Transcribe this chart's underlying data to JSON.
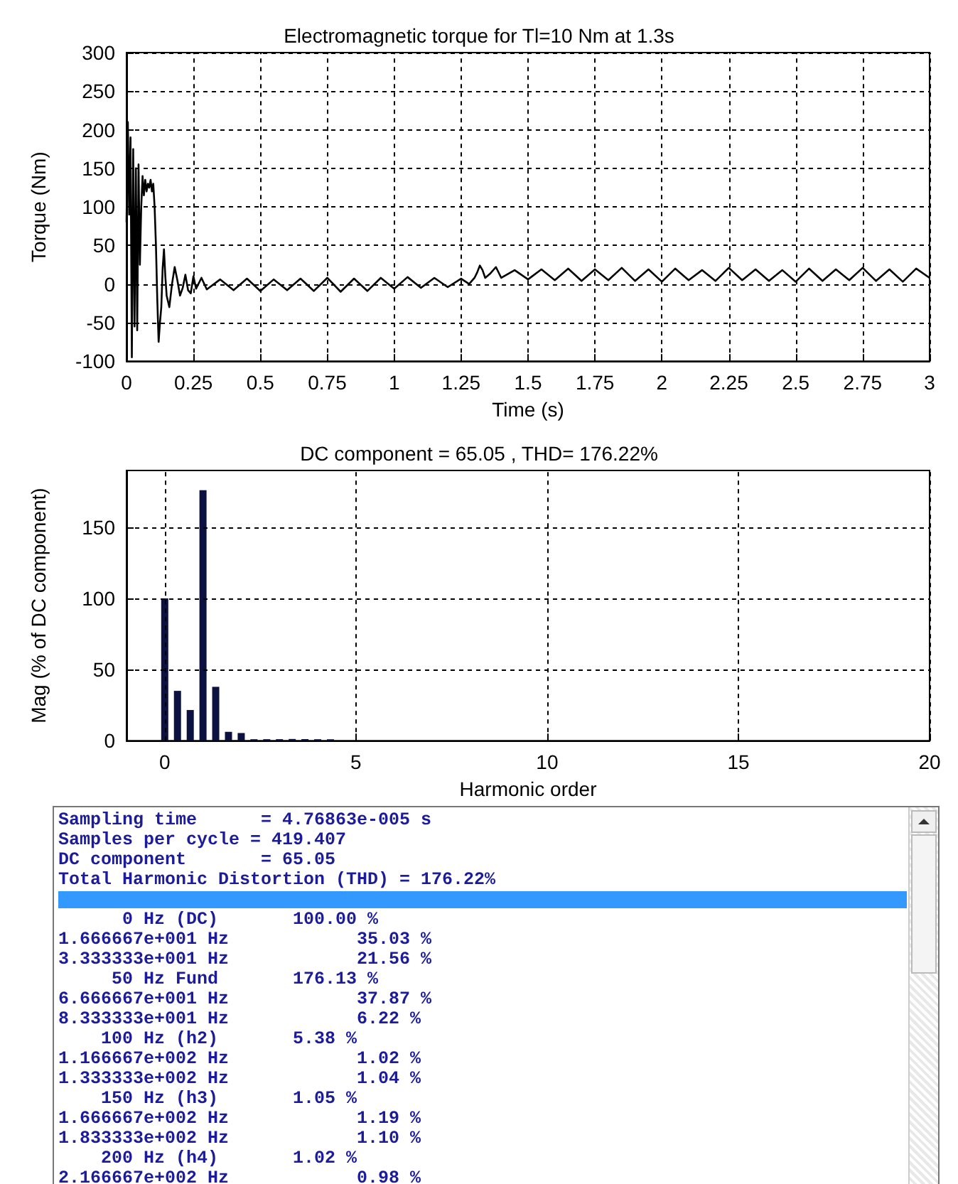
{
  "chart_data": [
    {
      "type": "line",
      "title": "Electromagnetic torque for Tl=10 Nm at 1.3s",
      "xlabel": "Time (s)",
      "ylabel": "Torque (Nm)",
      "xlim": [
        0,
        3
      ],
      "xticks": [
        0,
        0.25,
        0.5,
        0.75,
        1,
        1.25,
        1.5,
        1.75,
        2,
        2.25,
        2.5,
        2.75,
        3
      ],
      "ylim": [
        -100,
        300
      ],
      "yticks": [
        -100,
        -50,
        0,
        50,
        100,
        150,
        200,
        250,
        300
      ],
      "grid": true,
      "series": [
        {
          "color": "#000000",
          "x": [
            0,
            0.005,
            0.01,
            0.015,
            0.02,
            0.025,
            0.03,
            0.035,
            0.04,
            0.045,
            0.05,
            0.055,
            0.06,
            0.065,
            0.07,
            0.075,
            0.08,
            0.085,
            0.09,
            0.095,
            0.1,
            0.105,
            0.11,
            0.115,
            0.12,
            0.125,
            0.13,
            0.135,
            0.14,
            0.145,
            0.15,
            0.16,
            0.17,
            0.18,
            0.19,
            0.2,
            0.21,
            0.22,
            0.23,
            0.24,
            0.25,
            0.26,
            0.28,
            0.3,
            0.35,
            0.4,
            0.45,
            0.5,
            0.55,
            0.6,
            0.65,
            0.7,
            0.75,
            0.8,
            0.85,
            0.9,
            0.95,
            1.0,
            1.05,
            1.1,
            1.15,
            1.2,
            1.25,
            1.28,
            1.3,
            1.31,
            1.32,
            1.33,
            1.34,
            1.36,
            1.38,
            1.4,
            1.45,
            1.5,
            1.55,
            1.6,
            1.65,
            1.7,
            1.75,
            1.8,
            1.85,
            1.9,
            1.95,
            2.0,
            2.05,
            2.1,
            2.15,
            2.2,
            2.25,
            2.3,
            2.35,
            2.4,
            2.45,
            2.5,
            2.55,
            2.6,
            2.65,
            2.7,
            2.75,
            2.8,
            2.85,
            2.9,
            2.95,
            3.0
          ],
          "values": [
            80,
            210,
            90,
            190,
            -95,
            175,
            -55,
            150,
            -60,
            155,
            25,
            100,
            140,
            115,
            135,
            120,
            130,
            125,
            135,
            120,
            130,
            100,
            50,
            -20,
            -75,
            -50,
            -30,
            20,
            45,
            10,
            -15,
            -30,
            0,
            22,
            5,
            -15,
            -5,
            12,
            -8,
            -12,
            10,
            -6,
            8,
            -7,
            6,
            -8,
            7,
            -9,
            6,
            -8,
            7,
            -9,
            8,
            -10,
            7,
            -9,
            8,
            -6,
            9,
            -5,
            8,
            -4,
            7,
            0,
            8,
            15,
            24,
            18,
            8,
            14,
            22,
            8,
            18,
            6,
            19,
            5,
            20,
            4,
            19,
            5,
            21,
            4,
            19,
            3,
            20,
            5,
            18,
            4,
            21,
            5,
            19,
            4,
            18,
            3,
            20,
            4,
            19,
            5,
            21,
            4,
            19,
            3,
            20,
            8
          ]
        }
      ]
    },
    {
      "type": "bar",
      "title": "DC component = 65.05 , THD= 176.22%",
      "xlabel": "Harmonic order",
      "ylabel": "Mag (% of DC component)",
      "xlim": [
        -1,
        20
      ],
      "xticks": [
        0,
        5,
        10,
        15,
        20
      ],
      "ylim": [
        0,
        190
      ],
      "yticks": [
        0,
        50,
        100,
        150
      ],
      "grid": true,
      "x": [
        0,
        0.333,
        0.667,
        1,
        1.333,
        1.667,
        2,
        2.333,
        2.667,
        3,
        3.333,
        3.667,
        4,
        4.333
      ],
      "series": [
        {
          "color": "#0b1140",
          "values": [
            100,
            35.03,
            21.56,
            176.13,
            37.87,
            6.22,
            5.38,
            1.02,
            1.04,
            1.05,
            1.19,
            1.1,
            1.02,
            0.98
          ]
        }
      ]
    },
    {
      "type": "other",
      "annotations": [
        "Sampling time      = 4.76863e-005 s",
        "Samples per cycle = 419.407",
        "DC component       = 65.05",
        "Total Harmonic Distortion (THD) = 176.22%",
        "      0 Hz (DC)       100.00 %",
        "1.666667e+001 Hz            35.03 %",
        "3.333333e+001 Hz            21.56 %",
        "     50 Hz Fund       176.13 %",
        "6.666667e+001 Hz            37.87 %",
        "8.333333e+001 Hz            6.22 %",
        "    100 Hz (h2)       5.38 %",
        "1.166667e+002 Hz            1.02 %",
        "1.333333e+002 Hz            1.04 %",
        "    150 Hz (h3)       1.05 %",
        "1.666667e+002 Hz            1.19 %",
        "1.833333e+002 Hz            1.10 %",
        "    200 Hz (h4)       1.02 %",
        "2.166667e+002 Hz            0.98 %"
      ]
    }
  ]
}
